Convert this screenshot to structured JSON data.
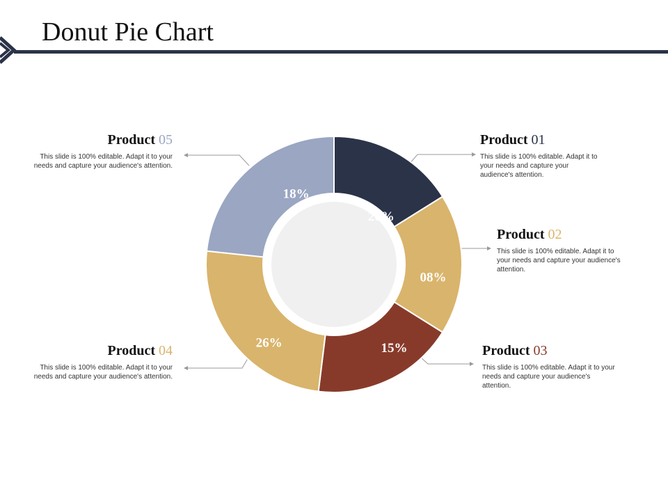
{
  "page": {
    "title": "Donut Pie Chart"
  },
  "colors": {
    "header_rule": "#2b3349",
    "center_circle": "#f0f0f0",
    "connector": "#9a9a9a"
  },
  "chart_data": {
    "type": "pie",
    "donut": true,
    "slices": [
      {
        "name": "Product 01",
        "value_label": "20%",
        "color": "#2b3349",
        "label_color": "#ffffff"
      },
      {
        "name": "Product 02",
        "value_label": "08%",
        "color": "#d9b46c",
        "label_color": "#ffffff"
      },
      {
        "name": "Product 03",
        "value_label": "15%",
        "color": "#883a2a",
        "label_color": "#ffffff"
      },
      {
        "name": "Product 04",
        "value_label": "26%",
        "color": "#d9b46c",
        "label_color": "#ffffff"
      },
      {
        "name": "Product 05",
        "value_label": "18%",
        "color": "#9aa6c2",
        "label_color": "#ffffff"
      }
    ]
  },
  "products": [
    {
      "word": "Product",
      "num": "01",
      "num_color": "#2b3349",
      "description": "This slide is 100% editable. Adapt it to your needs and capture your audience's attention."
    },
    {
      "word": "Product",
      "num": "02",
      "num_color": "#d9b46c",
      "description": "This slide is 100% editable. Adapt it to your needs and capture your audience's attention."
    },
    {
      "word": "Product",
      "num": "03",
      "num_color": "#883a2a",
      "description": "This slide is 100% editable. Adapt it to your needs and capture your audience's attention."
    },
    {
      "word": "Product",
      "num": "04",
      "num_color": "#d9b46c",
      "description": "This slide is 100% editable. Adapt it to your needs and capture your audience's attention."
    },
    {
      "word": "Product",
      "num": "05",
      "num_color": "#9aa6c2",
      "description": "This slide is 100% editable. Adapt it to your needs and capture your audience's attention."
    }
  ]
}
